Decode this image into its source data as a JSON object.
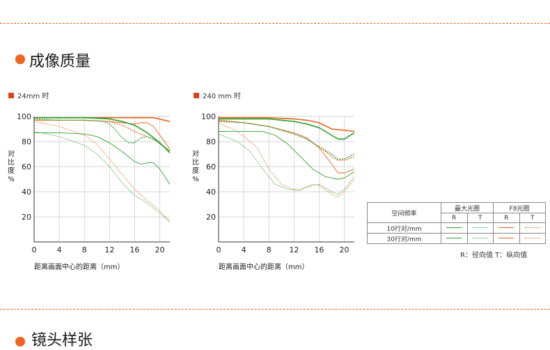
{
  "section1": {
    "title": "成像质量"
  },
  "section2": {
    "title": "镜头样张"
  },
  "chart_data": [
    {
      "type": "line",
      "title": "24mm 时",
      "xlabel": "距离画面中心的距离（mm）",
      "ylabel": "对比度%",
      "xlim": [
        0,
        21.6
      ],
      "ylim": [
        0,
        100
      ],
      "xticks": [
        0,
        4,
        8,
        12,
        16,
        20
      ],
      "yticks": [
        20,
        40,
        60,
        80,
        100
      ],
      "grid": true,
      "series": [
        {
          "color": "#e6641e",
          "style": "solid",
          "points": [
            [
              0,
              99
            ],
            [
              4,
              99
            ],
            [
              8,
              99
            ],
            [
              12,
              99
            ],
            [
              15,
              99
            ],
            [
              17,
              99
            ],
            [
              19,
              99
            ],
            [
              21.6,
              96
            ]
          ]
        },
        {
          "color": "#e6641e",
          "style": "dotted",
          "points": [
            [
              0,
              97
            ],
            [
              4,
              97
            ],
            [
              8,
              97
            ],
            [
              12,
              96
            ],
            [
              14,
              93
            ],
            [
              16,
              88
            ],
            [
              18,
              84
            ],
            [
              20,
              79
            ],
            [
              21.6,
              72
            ]
          ]
        },
        {
          "color": "#e6641e",
          "style": "solid-thin",
          "points": [
            [
              0,
              97
            ],
            [
              4,
              97
            ],
            [
              8,
              97
            ],
            [
              12,
              96
            ],
            [
              14,
              95
            ],
            [
              16,
              94
            ],
            [
              17,
              95
            ],
            [
              18,
              95
            ],
            [
              19,
              92
            ],
            [
              20,
              85
            ],
            [
              21.6,
              74
            ]
          ]
        },
        {
          "color": "#e6641e",
          "style": "dotted-thin",
          "points": [
            [
              0,
              96
            ],
            [
              4,
              92
            ],
            [
              8,
              85
            ],
            [
              10,
              78
            ],
            [
              12,
              66
            ],
            [
              14,
              54
            ],
            [
              16,
              42
            ],
            [
              18,
              33
            ],
            [
              20,
              25
            ],
            [
              21.6,
              16
            ]
          ]
        },
        {
          "color": "#2ca02c",
          "style": "solid",
          "points": [
            [
              0,
              99
            ],
            [
              4,
              99
            ],
            [
              8,
              99
            ],
            [
              12,
              98
            ],
            [
              14,
              96
            ],
            [
              16,
              93
            ],
            [
              18,
              87
            ],
            [
              20,
              79
            ],
            [
              21.6,
              71
            ]
          ]
        },
        {
          "color": "#2ca02c",
          "style": "dotted",
          "points": [
            [
              0,
              98
            ],
            [
              4,
              97
            ],
            [
              8,
              97
            ],
            [
              11,
              96
            ],
            [
              12,
              94
            ],
            [
              13,
              89
            ],
            [
              14,
              83
            ],
            [
              15,
              79
            ],
            [
              16,
              79
            ],
            [
              17,
              83
            ],
            [
              18,
              84
            ],
            [
              19,
              82
            ],
            [
              20,
              78
            ],
            [
              21.6,
              73
            ]
          ]
        },
        {
          "color": "#2ca02c",
          "style": "solid-thin",
          "points": [
            [
              0,
              87
            ],
            [
              4,
              87
            ],
            [
              8,
              86
            ],
            [
              10,
              84
            ],
            [
              12,
              79
            ],
            [
              14,
              72
            ],
            [
              16,
              64
            ],
            [
              17,
              62
            ],
            [
              18,
              63
            ],
            [
              19,
              63
            ],
            [
              20,
              58
            ],
            [
              21.6,
              46
            ]
          ]
        },
        {
          "color": "#2ca02c",
          "style": "dotted-thin",
          "points": [
            [
              0,
              88
            ],
            [
              4,
              84
            ],
            [
              8,
              77
            ],
            [
              10,
              70
            ],
            [
              12,
              60
            ],
            [
              14,
              47
            ],
            [
              16,
              37
            ],
            [
              18,
              31
            ],
            [
              20,
              23
            ],
            [
              21.6,
              16
            ]
          ]
        }
      ]
    },
    {
      "type": "line",
      "title": "240 mm 时",
      "xlabel": "距离画面中心的距离（mm）",
      "ylabel": "对比度%",
      "xlim": [
        0,
        21.6
      ],
      "ylim": [
        0,
        100
      ],
      "xticks": [
        0,
        4,
        8,
        12,
        16,
        20
      ],
      "yticks": [
        20,
        40,
        60,
        80,
        100
      ],
      "grid": true,
      "series": [
        {
          "color": "#e6641e",
          "style": "solid",
          "points": [
            [
              0,
              99
            ],
            [
              4,
              99
            ],
            [
              8,
              99
            ],
            [
              12,
              98
            ],
            [
              14,
              97
            ],
            [
              16,
              95
            ],
            [
              18,
              90
            ],
            [
              20,
              89
            ],
            [
              21.6,
              88
            ]
          ]
        },
        {
          "color": "#e6641e",
          "style": "dotted",
          "points": [
            [
              0,
              97
            ],
            [
              4,
              95
            ],
            [
              8,
              92
            ],
            [
              12,
              86
            ],
            [
              14,
              82
            ],
            [
              16,
              76
            ],
            [
              18,
              68
            ],
            [
              19,
              65
            ],
            [
              20,
              65
            ],
            [
              21.6,
              68
            ]
          ]
        },
        {
          "color": "#e6641e",
          "style": "solid-thin",
          "points": [
            [
              0,
              97
            ],
            [
              4,
              95
            ],
            [
              8,
              92
            ],
            [
              12,
              87
            ],
            [
              14,
              83
            ],
            [
              16,
              75
            ],
            [
              18,
              62
            ],
            [
              19,
              55
            ],
            [
              20,
              55
            ],
            [
              21.6,
              58
            ]
          ]
        },
        {
          "color": "#e6641e",
          "style": "dotted-thin",
          "points": [
            [
              0,
              95
            ],
            [
              3,
              88
            ],
            [
              6,
              76
            ],
            [
              8,
              58
            ],
            [
              10,
              46
            ],
            [
              12,
              41
            ],
            [
              13,
              41
            ],
            [
              14,
              44
            ],
            [
              15,
              46
            ],
            [
              16,
              45
            ],
            [
              18,
              38
            ],
            [
              19,
              36
            ],
            [
              20,
              40
            ],
            [
              21.6,
              50
            ]
          ]
        },
        {
          "color": "#2ca02c",
          "style": "solid",
          "points": [
            [
              0,
              98
            ],
            [
              4,
              98
            ],
            [
              8,
              98
            ],
            [
              12,
              96
            ],
            [
              14,
              94
            ],
            [
              16,
              91
            ],
            [
              18,
              85
            ],
            [
              19,
              82
            ],
            [
              20,
              82
            ],
            [
              21.6,
              87
            ]
          ]
        },
        {
          "color": "#2ca02c",
          "style": "dotted",
          "points": [
            [
              0,
              96
            ],
            [
              4,
              95
            ],
            [
              8,
              92
            ],
            [
              12,
              86
            ],
            [
              14,
              82
            ],
            [
              16,
              76
            ],
            [
              18,
              70
            ],
            [
              19,
              66
            ],
            [
              20,
              66
            ],
            [
              21.6,
              70
            ]
          ]
        },
        {
          "color": "#2ca02c",
          "style": "solid-thin",
          "points": [
            [
              0,
              88
            ],
            [
              4,
              88
            ],
            [
              7,
              88
            ],
            [
              9,
              85
            ],
            [
              11,
              78
            ],
            [
              13,
              68
            ],
            [
              15,
              58
            ],
            [
              17,
              52
            ],
            [
              19,
              50
            ],
            [
              20,
              51
            ],
            [
              21.6,
              56
            ]
          ]
        },
        {
          "color": "#2ca02c",
          "style": "dotted-thin",
          "points": [
            [
              0,
              86
            ],
            [
              3,
              80
            ],
            [
              5,
              72
            ],
            [
              7,
              58
            ],
            [
              9,
              46
            ],
            [
              11,
              42
            ],
            [
              13,
              42
            ],
            [
              15,
              45
            ],
            [
              16,
              46
            ],
            [
              18,
              40
            ],
            [
              19,
              38
            ],
            [
              20,
              42
            ],
            [
              21.6,
              52
            ]
          ]
        }
      ]
    }
  ],
  "legend_table": {
    "header_label": "空间频率",
    "groups": [
      "最大光圈",
      "F8光圈"
    ],
    "sub": [
      "R",
      "T",
      "R",
      "T"
    ],
    "rows": [
      {
        "label": "10行对/mm",
        "swatches": [
          {
            "color": "#2ca02c",
            "style": "solid"
          },
          {
            "color": "#2ca02c",
            "style": "dotted"
          },
          {
            "color": "#e6641e",
            "style": "solid"
          },
          {
            "color": "#e6641e",
            "style": "dotted"
          }
        ]
      },
      {
        "label": "30行对/mm",
        "swatches": [
          {
            "color": "#2ca02c",
            "style": "solid-thin"
          },
          {
            "color": "#2ca02c",
            "style": "dotted-thin"
          },
          {
            "color": "#e6641e",
            "style": "solid-thin"
          },
          {
            "color": "#e6641e",
            "style": "dotted-thin"
          }
        ]
      }
    ],
    "note": "R：径向值  T：纵向值"
  },
  "colors": {
    "accent": "#ee6420",
    "marker": "#e0401c",
    "divider": "#e7601b"
  }
}
